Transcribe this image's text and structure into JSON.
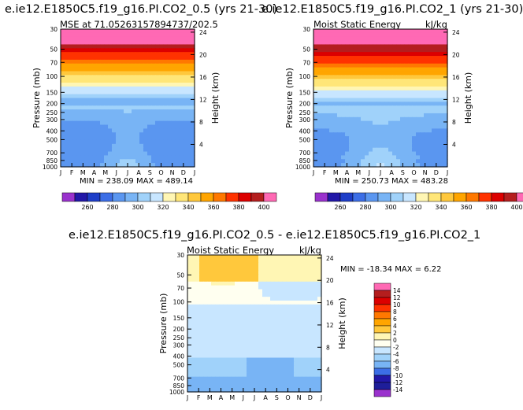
{
  "panels": [
    {
      "title": "e.ie12.E1850C5.f19_g16.PI.CO2_0.5 (yrs 21-30)",
      "left_label": "MSE at 71.05263157894737/202.5",
      "right_label": "",
      "min_max": "MIN = 238.09 MAX = 489.14",
      "ylabel_left": "Pressure (mb)",
      "ylabel_right": "Height (km)"
    },
    {
      "title": "e.ie12.E1850C5.f19_g16.PI.CO2_1 (yrs 21-30)",
      "left_label": "Moist Static Energy",
      "right_label": "kJ/kg",
      "min_max": "MIN = 250.73 MAX = 483.28",
      "ylabel_left": "Pressure (mb)",
      "ylabel_right": "Height (km)"
    },
    {
      "title": "e.ie12.E1850C5.f19_g16.PI.CO2_0.5 - e.ie12.E1850C5.f19_g16.PI.CO2_1",
      "left_label": "Moist Static Energy",
      "right_label": "kJ/kg",
      "min_max": "MIN = -18.34 MAX =    6.22",
      "ylabel_left": "Pressure (mb)",
      "ylabel_right": "Height (km)"
    }
  ],
  "chart_data": [
    {
      "type": "heatmap",
      "x": [
        "J",
        "F",
        "M",
        "A",
        "M",
        "J",
        "J",
        "A",
        "S",
        "O",
        "N",
        "D",
        "J"
      ],
      "pressure_ticks": [
        "30",
        "50",
        "70",
        "100",
        "150",
        "200",
        "250",
        "300",
        "400",
        "500",
        "700",
        "850",
        "1000"
      ],
      "height_ticks": [
        "24",
        "20",
        "16",
        "12",
        "8",
        "4"
      ],
      "colorbar_labels": [
        "260",
        "280",
        "300",
        "320",
        "340",
        "360",
        "380",
        "400"
      ],
      "colorbar_colors": [
        "#9a32cd",
        "#2218a8",
        "#1e3ec8",
        "#3c6ee6",
        "#5a96f0",
        "#78b4f5",
        "#a0d2fa",
        "#c8e6ff",
        "#fff6b4",
        "#ffe678",
        "#ffc83c",
        "#ffa500",
        "#ff7800",
        "#ff3200",
        "#dc0000",
        "#b41e1e",
        "#ff69b4"
      ],
      "ylim_mb": [
        1000,
        30
      ],
      "zlim": [
        250,
        410
      ]
    },
    {
      "type": "heatmap",
      "x": [
        "J",
        "F",
        "M",
        "A",
        "M",
        "J",
        "J",
        "A",
        "S",
        "O",
        "N",
        "D",
        "J"
      ],
      "pressure_ticks": [
        "30",
        "50",
        "70",
        "100",
        "150",
        "200",
        "250",
        "300",
        "400",
        "500",
        "700",
        "850",
        "1000"
      ],
      "height_ticks": [
        "24",
        "20",
        "16",
        "12",
        "8",
        "4"
      ],
      "colorbar_labels": [
        "260",
        "280",
        "300",
        "320",
        "340",
        "360",
        "380",
        "400"
      ],
      "colorbar_colors": [
        "#9a32cd",
        "#2218a8",
        "#1e3ec8",
        "#3c6ee6",
        "#5a96f0",
        "#78b4f5",
        "#a0d2fa",
        "#c8e6ff",
        "#fff6b4",
        "#ffe678",
        "#ffc83c",
        "#ffa500",
        "#ff7800",
        "#ff3200",
        "#dc0000",
        "#b41e1e",
        "#ff69b4"
      ],
      "ylim_mb": [
        1000,
        30
      ],
      "zlim": [
        250,
        410
      ]
    },
    {
      "type": "heatmap",
      "x": [
        "J",
        "F",
        "M",
        "A",
        "M",
        "J",
        "J",
        "A",
        "S",
        "O",
        "N",
        "D",
        "J"
      ],
      "pressure_ticks": [
        "30",
        "50",
        "70",
        "100",
        "150",
        "200",
        "250",
        "300",
        "400",
        "500",
        "700",
        "850",
        "1000"
      ],
      "height_ticks": [
        "24",
        "20",
        "16",
        "12",
        "8",
        "4"
      ],
      "colorbar_labels": [
        "14",
        "12",
        "10",
        "8",
        "6",
        "4",
        "2",
        "0",
        "-2",
        "-4",
        "-6",
        "-8",
        "-10",
        "-12",
        "-14"
      ],
      "colorbar_colors": [
        "#ff69b4",
        "#b41e1e",
        "#dc0000",
        "#ff3200",
        "#ff7800",
        "#ffa500",
        "#ffc83c",
        "#fff6b4",
        "#fffff0",
        "#c8e6ff",
        "#a0d2fa",
        "#78b4f5",
        "#3c6ee6",
        "#2218a8",
        "#1e1e9a",
        "#9a32cd"
      ],
      "ylim_mb": [
        1000,
        30
      ],
      "zlim": [
        -16,
        16
      ]
    }
  ]
}
